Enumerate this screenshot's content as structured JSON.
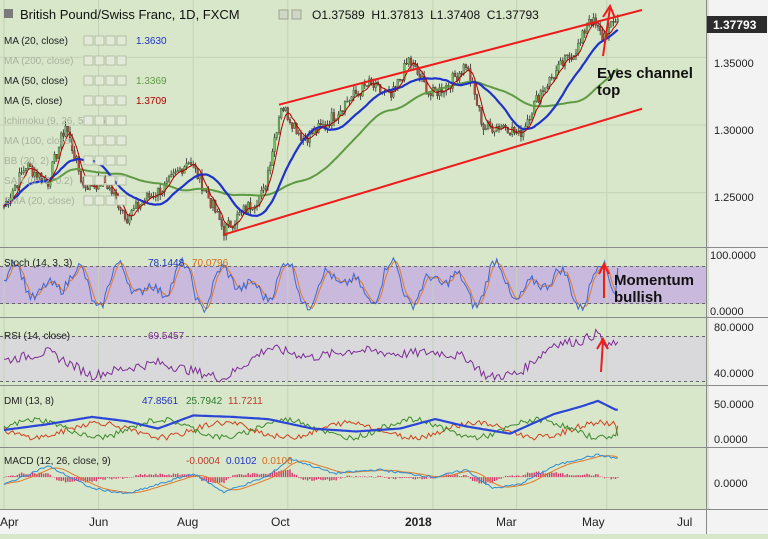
{
  "header": {
    "symbol": "British Pound/Swiss Franc, 1D, FXCM",
    "ohlc": "O1.37589  H1.37813  L1.37408  C1.37793"
  },
  "main_legend": [
    {
      "label": "MA (20, close)",
      "value": "1.3630",
      "color": "#1f32c9"
    },
    {
      "label": "MA (200, close)",
      "value": "",
      "color": "#9aa590"
    },
    {
      "label": "MA (50, close)",
      "value": "1.3369",
      "color": "#5f9a45"
    },
    {
      "label": "MA (5, close)",
      "value": "1.3709",
      "color": "#b00000"
    },
    {
      "label": "Ichimoku (9, 26, 52, 26)",
      "value": "",
      "color": "#9aa590"
    },
    {
      "label": "MA (100, close)",
      "value": "",
      "color": "#9aa590"
    },
    {
      "label": "BB (20, 2)",
      "value": "",
      "color": "#9aa590"
    },
    {
      "label": "SAR (0.02, 0.2)",
      "value": "",
      "color": "#9aa590"
    },
    {
      "label": "SMA (20, close)",
      "value": "",
      "color": "#9aa590"
    }
  ],
  "price_badge": "1.37793",
  "annotations": {
    "channel_note_line1": "Eyes channel",
    "channel_note_line2": "top",
    "momentum_line1": "Momentum",
    "momentum_line2": "bullish"
  },
  "panels": {
    "stoch": {
      "label": "Stoch (14, 3, 3)",
      "k": "78.1448",
      "d": "70.0796"
    },
    "rsi": {
      "label": "RSI (14, close)",
      "value": "69.5457"
    },
    "dmi": {
      "label": "DMI (13, 8)",
      "adx": "47.8561",
      "plus_di": "25.7942",
      "minus_di": "11.7211"
    },
    "macd": {
      "label": "MACD (12, 26, close, 9)",
      "hist": "-0.0004",
      "macd": "0.0102",
      "signal": "0.0106"
    }
  },
  "axis": {
    "price_ticks": [
      "1.35000",
      "1.30000",
      "1.25000"
    ],
    "stoch_ticks": [
      "100.0000",
      "0.0000"
    ],
    "rsi_ticks": [
      "80.0000",
      "40.0000"
    ],
    "dmi_ticks": [
      "50.0000",
      "0.0000"
    ],
    "macd_ticks": [
      "0.0000"
    ],
    "time_ticks": [
      "Apr",
      "Jun",
      "Aug",
      "Oct",
      "2018",
      "Mar",
      "May",
      "Jul"
    ]
  },
  "chart_data": {
    "type": "line",
    "title": "British Pound/Swiss Franc, 1D, FXCM",
    "x_ticks": [
      "Apr",
      "Jun",
      "Aug",
      "Oct",
      "2018",
      "Mar",
      "May",
      "Jul"
    ],
    "x_tick_index": [
      0,
      43,
      86,
      129,
      195,
      233,
      274,
      320
    ],
    "price": {
      "ylim": [
        1.215,
        1.385
      ],
      "close_anchors": [
        [
          0,
          1.24
        ],
        [
          10,
          1.27
        ],
        [
          20,
          1.258
        ],
        [
          28,
          1.3
        ],
        [
          36,
          1.255
        ],
        [
          46,
          1.258
        ],
        [
          56,
          1.232
        ],
        [
          64,
          1.245
        ],
        [
          74,
          1.255
        ],
        [
          84,
          1.275
        ],
        [
          92,
          1.25
        ],
        [
          100,
          1.222
        ],
        [
          108,
          1.235
        ],
        [
          118,
          1.25
        ],
        [
          126,
          1.315
        ],
        [
          136,
          1.29
        ],
        [
          146,
          1.3
        ],
        [
          156,
          1.318
        ],
        [
          166,
          1.33
        ],
        [
          176,
          1.32
        ],
        [
          184,
          1.348
        ],
        [
          194,
          1.322
        ],
        [
          202,
          1.33
        ],
        [
          210,
          1.345
        ],
        [
          218,
          1.298
        ],
        [
          228,
          1.3
        ],
        [
          234,
          1.292
        ],
        [
          244,
          1.325
        ],
        [
          254,
          1.345
        ],
        [
          262,
          1.36
        ],
        [
          266,
          1.38
        ],
        [
          272,
          1.365
        ],
        [
          276,
          1.372
        ],
        [
          278,
          1.3779
        ]
      ],
      "ma20_last": 1.363,
      "ma50_last": 1.3369,
      "ma5_last": 1.3709,
      "channel_upper": [
        [
          125,
          1.315
        ],
        [
          290,
          1.385
        ]
      ],
      "channel_lower": [
        [
          100,
          1.219
        ],
        [
          290,
          1.312
        ]
      ]
    },
    "stoch": {
      "ylim": [
        0,
        100
      ],
      "levels": [
        20,
        80
      ],
      "last_k": 78.1448,
      "last_d": 70.0796
    },
    "rsi": {
      "ylim": [
        30,
        90
      ],
      "levels": [
        30,
        70
      ],
      "last": 69.5457,
      "anchors": [
        [
          0,
          52
        ],
        [
          20,
          60
        ],
        [
          40,
          38
        ],
        [
          56,
          45
        ],
        [
          70,
          50
        ],
        [
          86,
          42
        ],
        [
          100,
          35
        ],
        [
          120,
          64
        ],
        [
          140,
          55
        ],
        [
          160,
          62
        ],
        [
          180,
          58
        ],
        [
          196,
          60
        ],
        [
          210,
          55
        ],
        [
          220,
          36
        ],
        [
          234,
          40
        ],
        [
          250,
          68
        ],
        [
          262,
          70
        ],
        [
          270,
          78
        ],
        [
          274,
          63
        ],
        [
          278,
          69.55
        ]
      ]
    },
    "dmi": {
      "ylim": [
        -2,
        75
      ],
      "last_adx": 47.8561,
      "last_plus": 25.7942,
      "last_minus": 11.7211,
      "adx_anchors": [
        [
          0,
          20
        ],
        [
          20,
          28
        ],
        [
          40,
          38
        ],
        [
          56,
          32
        ],
        [
          70,
          22
        ],
        [
          86,
          40
        ],
        [
          104,
          38
        ],
        [
          120,
          35
        ],
        [
          140,
          22
        ],
        [
          160,
          18
        ],
        [
          180,
          22
        ],
        [
          196,
          35
        ],
        [
          210,
          25
        ],
        [
          230,
          15
        ],
        [
          250,
          42
        ],
        [
          262,
          52
        ],
        [
          270,
          60
        ],
        [
          278,
          47.86
        ]
      ]
    },
    "macd": {
      "ylim": [
        -0.0155,
        0.0135
      ],
      "last_macd": 0.0102,
      "last_signal": 0.0106,
      "last_hist": -0.0004,
      "anchors": [
        [
          0,
          -0.004
        ],
        [
          20,
          0.006
        ],
        [
          40,
          -0.006
        ],
        [
          56,
          -0.009
        ],
        [
          70,
          -0.004
        ],
        [
          86,
          0.002
        ],
        [
          100,
          -0.008
        ],
        [
          120,
          0.0005
        ],
        [
          130,
          0.01
        ],
        [
          150,
          0.002
        ],
        [
          170,
          0.004
        ],
        [
          196,
          0.0
        ],
        [
          210,
          0.004
        ],
        [
          222,
          -0.006
        ],
        [
          234,
          -0.004
        ],
        [
          250,
          0.006
        ],
        [
          262,
          0.01
        ],
        [
          270,
          0.012
        ],
        [
          278,
          0.0102
        ]
      ]
    }
  }
}
